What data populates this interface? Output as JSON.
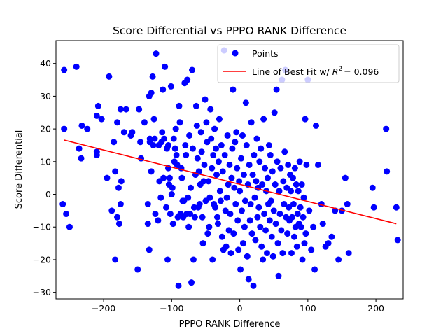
{
  "chart_data": {
    "type": "scatter",
    "title": "Score Differential vs PPPO RANK Difference",
    "xlabel": "PPPO RANK Difference",
    "ylabel": "Score Differential",
    "xlim": [
      -270,
      240
    ],
    "ylim": [
      -32,
      47
    ],
    "xticks": [
      -200,
      -100,
      0,
      100,
      200
    ],
    "yticks": [
      -30,
      -20,
      -10,
      0,
      10,
      20,
      30,
      40
    ],
    "grid": false,
    "legend_position": "top-right",
    "colors": {
      "points": "#0000ff",
      "fit_line": "#ff0000"
    },
    "series": [
      {
        "name": "Points",
        "points": [
          [
            -258,
            38
          ],
          [
            -240,
            39
          ],
          [
            -258,
            20
          ],
          [
            -236,
            14
          ],
          [
            -232,
            21
          ],
          [
            -233,
            11
          ],
          [
            -224,
            20
          ],
          [
            -260,
            -3
          ],
          [
            -255,
            -6
          ],
          [
            -250,
            -10
          ],
          [
            -210,
            24
          ],
          [
            -208,
            27
          ],
          [
            -210,
            13
          ],
          [
            -210,
            12
          ],
          [
            -203,
            23
          ],
          [
            -195,
            5
          ],
          [
            -192,
            36
          ],
          [
            -188,
            -5
          ],
          [
            -185,
            16
          ],
          [
            -183,
            -20
          ],
          [
            -183,
            7
          ],
          [
            -180,
            -7
          ],
          [
            -178,
            2
          ],
          [
            -177,
            -9
          ],
          [
            -175,
            -3
          ],
          [
            -174,
            4
          ],
          [
            -175,
            26
          ],
          [
            -180,
            22
          ],
          [
            -170,
            19
          ],
          [
            -167,
            26
          ],
          [
            -160,
            18
          ],
          [
            -158,
            19
          ],
          [
            -150,
            -23
          ],
          [
            -148,
            26
          ],
          [
            -146,
            16
          ],
          [
            -145,
            11
          ],
          [
            -140,
            22
          ],
          [
            -135,
            -3
          ],
          [
            -135,
            -9
          ],
          [
            -133,
            30
          ],
          [
            -133,
            -17
          ],
          [
            -132,
            16
          ],
          [
            -132,
            17
          ],
          [
            -130,
            31
          ],
          [
            -130,
            7
          ],
          [
            -128,
            36
          ],
          [
            -127,
            15
          ],
          [
            -126,
            23
          ],
          [
            -125,
            17
          ],
          [
            -124,
            -6
          ],
          [
            -123,
            43
          ],
          [
            -120,
            -8
          ],
          [
            -119,
            15
          ],
          [
            -118,
            4
          ],
          [
            -116,
            -1
          ],
          [
            -115,
            16
          ],
          [
            -114,
            19
          ],
          [
            -113,
            32
          ],
          [
            -112,
            5
          ],
          [
            -111,
            17
          ],
          [
            -110,
            39
          ],
          [
            -108,
            -4
          ],
          [
            -107,
            14
          ],
          [
            -106,
            -20
          ],
          [
            -105,
            15
          ],
          [
            -105,
            8
          ],
          [
            -104,
            3
          ],
          [
            -103,
            5
          ],
          [
            -102,
            -6
          ],
          [
            -101,
            33
          ],
          [
            -100,
            0
          ],
          [
            -99,
            2
          ],
          [
            -98,
            -9
          ],
          [
            -97,
            17
          ],
          [
            -96,
            10
          ],
          [
            -95,
            14
          ],
          [
            -94,
            20
          ],
          [
            -93,
            12
          ],
          [
            -92,
            9
          ],
          [
            -91,
            -7
          ],
          [
            -90,
            -28
          ],
          [
            -89,
            27
          ],
          [
            -88,
            22
          ],
          [
            -87,
            -6
          ],
          [
            -86,
            8
          ],
          [
            -85,
            5
          ],
          [
            -84,
            -2
          ],
          [
            -83,
            -7
          ],
          [
            -82,
            -2
          ],
          [
            -81,
            34
          ],
          [
            -80,
            15
          ],
          [
            -79,
            12
          ],
          [
            -78,
            -6
          ],
          [
            -77,
            35
          ],
          [
            -76,
            -1
          ],
          [
            -75,
            -10
          ],
          [
            -74,
            18
          ],
          [
            -73,
            -6
          ],
          [
            -72,
            2
          ],
          [
            -71,
            -27
          ],
          [
            -70,
            38
          ],
          [
            -69,
            14
          ],
          [
            -68,
            -20
          ],
          [
            -67,
            -4
          ],
          [
            -66,
            -7
          ],
          [
            -65,
            6
          ],
          [
            -64,
            27
          ],
          [
            -63,
            21
          ],
          [
            -62,
            11
          ],
          [
            -61,
            -4
          ],
          [
            -60,
            7
          ],
          [
            -59,
            -3
          ],
          [
            -58,
            3
          ],
          [
            -57,
            19
          ],
          [
            -56,
            13
          ],
          [
            -55,
            -7
          ],
          [
            -54,
            -15
          ],
          [
            -53,
            4
          ],
          [
            -52,
            9
          ],
          [
            -51,
            29
          ],
          [
            -50,
            -2
          ],
          [
            -49,
            22
          ],
          [
            -48,
            16
          ],
          [
            -47,
            -12
          ],
          [
            -46,
            4
          ],
          [
            -45,
            -10
          ],
          [
            -44,
            -1
          ],
          [
            -43,
            26
          ],
          [
            -42,
            17
          ],
          [
            -41,
            8
          ],
          [
            -40,
            -20
          ],
          [
            -39,
            12
          ],
          [
            -38,
            -3
          ],
          [
            -37,
            20
          ],
          [
            -36,
            -4
          ],
          [
            -35,
            14
          ],
          [
            -34,
            6
          ],
          [
            -33,
            -7
          ],
          [
            -32,
            -9
          ],
          [
            -31,
            10
          ],
          [
            -30,
            23
          ],
          [
            -29,
            1
          ],
          [
            -28,
            -2
          ],
          [
            -27,
            15
          ],
          [
            -26,
            -13
          ],
          [
            -25,
            7
          ],
          [
            -24,
            -17
          ],
          [
            -23,
            44
          ],
          [
            -22,
            12
          ],
          [
            -21,
            -5
          ],
          [
            -20,
            -16
          ],
          [
            -19,
            -1
          ],
          [
            -18,
            18
          ],
          [
            -17,
            3
          ],
          [
            -16,
            -11
          ],
          [
            -15,
            9
          ],
          [
            -14,
            -6
          ],
          [
            -13,
            -18
          ],
          [
            -12,
            5
          ],
          [
            -11,
            14
          ],
          [
            -10,
            32
          ],
          [
            -9,
            -12
          ],
          [
            -8,
            2
          ],
          [
            -7,
            16
          ],
          [
            -6,
            -3
          ],
          [
            -5,
            19
          ],
          [
            -4,
            8
          ],
          [
            -3,
            -8
          ],
          [
            -2,
            -17
          ],
          [
            -1,
            4
          ],
          [
            0,
            1
          ],
          [
            1,
            -23
          ],
          [
            2,
            11
          ],
          [
            3,
            -5
          ],
          [
            4,
            18
          ],
          [
            5,
            -15
          ],
          [
            6,
            6
          ],
          [
            7,
            -10
          ],
          [
            8,
            -2
          ],
          [
            9,
            28
          ],
          [
            10,
            15
          ],
          [
            11,
            -19
          ],
          [
            12,
            3
          ],
          [
            13,
            -26
          ],
          [
            14,
            9
          ],
          [
            15,
            -8
          ],
          [
            16,
            -3
          ],
          [
            17,
            22
          ],
          [
            18,
            -12
          ],
          [
            19,
            6
          ],
          [
            20,
            -28
          ],
          [
            21,
            12
          ],
          [
            22,
            -1
          ],
          [
            23,
            -14
          ],
          [
            24,
            4
          ],
          [
            25,
            17
          ],
          [
            26,
            -7
          ],
          [
            27,
            2
          ],
          [
            28,
            -4
          ],
          [
            29,
            10
          ],
          [
            30,
            -10
          ],
          [
            31,
            14
          ],
          [
            32,
            -16
          ],
          [
            33,
            3
          ],
          [
            34,
            -20
          ],
          [
            35,
            23
          ],
          [
            36,
            -6
          ],
          [
            37,
            8
          ],
          [
            38,
            -11
          ],
          [
            39,
            1
          ],
          [
            40,
            -18
          ],
          [
            41,
            5
          ],
          [
            42,
            -3
          ],
          [
            43,
            15
          ],
          [
            44,
            -8
          ],
          [
            45,
            12
          ],
          [
            46,
            -2
          ],
          [
            47,
            -13
          ],
          [
            48,
            7
          ],
          [
            49,
            -19
          ],
          [
            50,
            -5
          ],
          [
            51,
            25
          ],
          [
            52,
            3
          ],
          [
            53,
            -9
          ],
          [
            54,
            32
          ],
          [
            55,
            10
          ],
          [
            56,
            -15
          ],
          [
            57,
            -25
          ],
          [
            58,
            1
          ],
          [
            59,
            -6
          ],
          [
            60,
            8
          ],
          [
            61,
            -11
          ],
          [
            62,
            35
          ],
          [
            63,
            -18
          ],
          [
            64,
            4
          ],
          [
            65,
            -3
          ],
          [
            66,
            13
          ],
          [
            67,
            38
          ],
          [
            68,
            -7
          ],
          [
            69,
            2
          ],
          [
            70,
            -12
          ],
          [
            71,
            9
          ],
          [
            72,
            -4
          ],
          [
            73,
            -8
          ],
          [
            74,
            6
          ],
          [
            75,
            1
          ],
          [
            76,
            -18
          ],
          [
            77,
            -7
          ],
          [
            78,
            5
          ],
          [
            79,
            -3
          ],
          [
            80,
            -13
          ],
          [
            81,
            8
          ],
          [
            82,
            -10
          ],
          [
            83,
            3
          ],
          [
            84,
            -16
          ],
          [
            85,
            -6
          ],
          [
            86,
            1
          ],
          [
            87,
            -9
          ],
          [
            88,
            10
          ],
          [
            89,
            -4
          ],
          [
            90,
            -10
          ],
          [
            91,
            3
          ],
          [
            92,
            -20
          ],
          [
            93,
            -7
          ],
          [
            94,
            -1
          ],
          [
            95,
            -15
          ],
          [
            96,
            23
          ],
          [
            97,
            -12
          ],
          [
            98,
            9
          ],
          [
            100,
            35
          ],
          [
            102,
            -5
          ],
          [
            105,
            -17
          ],
          [
            108,
            -10
          ],
          [
            110,
            -23
          ],
          [
            112,
            21
          ],
          [
            115,
            9
          ],
          [
            120,
            -3
          ],
          [
            122,
            -9
          ],
          [
            126,
            -16
          ],
          [
            130,
            -15
          ],
          [
            135,
            -13
          ],
          [
            140,
            -5
          ],
          [
            145,
            -20
          ],
          [
            150,
            -5
          ],
          [
            155,
            5
          ],
          [
            158,
            -3
          ],
          [
            160,
            -18
          ],
          [
            195,
            2
          ],
          [
            197,
            -4
          ],
          [
            215,
            20
          ],
          [
            216,
            7
          ],
          [
            230,
            -4
          ],
          [
            232,
            -14
          ]
        ]
      }
    ],
    "fit_line": {
      "name": "Line of Best Fit w/ R² = 0.096",
      "legend_prefix": "Line of Best Fit w/ ",
      "r2_label": "= 0.096",
      "x": [
        -258,
        230
      ],
      "y": [
        16.6,
        -9.0
      ]
    }
  }
}
